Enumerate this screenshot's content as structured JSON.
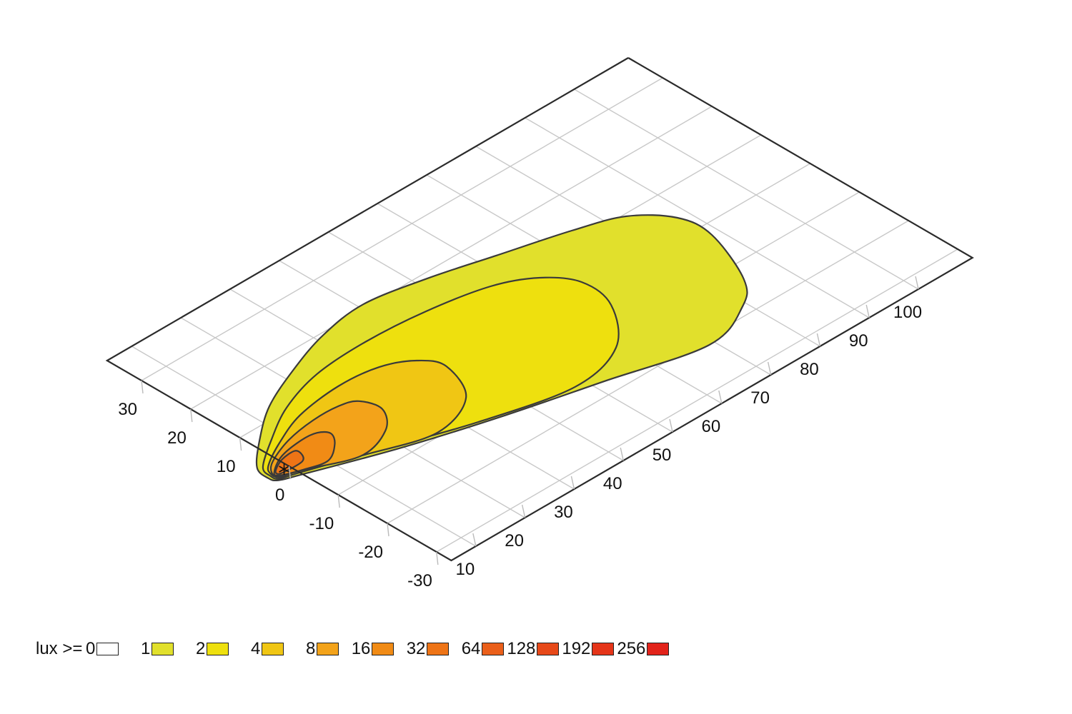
{
  "chart_data": {
    "type": "contour",
    "unit": "lux",
    "x_axis": {
      "ticks": [
        10,
        20,
        30,
        40,
        50,
        60,
        70,
        80,
        90,
        100
      ],
      "range": [
        5,
        111
      ]
    },
    "y_axis": {
      "ticks": [
        -30,
        -20,
        -10,
        0,
        10,
        20,
        30
      ],
      "range": [
        -33,
        37
      ]
    },
    "grid": true,
    "source_marker": {
      "x": 4,
      "y": 0
    },
    "contours": [
      {
        "level": 1,
        "color": "#e1e02c",
        "points": [
          [
            1.5,
            -1.4
          ],
          [
            0.8,
            0
          ],
          [
            1.5,
            3
          ],
          [
            6.5,
            7.5
          ],
          [
            13.5,
            12.5
          ],
          [
            22.5,
            16.5
          ],
          [
            31.5,
            19.5
          ],
          [
            41,
            20.8
          ],
          [
            52,
            18.8
          ],
          [
            63,
            15.8
          ],
          [
            75,
            12.5
          ],
          [
            83,
            9.5
          ],
          [
            88,
            4
          ],
          [
            88.5,
            -2.5
          ],
          [
            84,
            -13.5
          ],
          [
            79,
            -18.2
          ],
          [
            69,
            -21.5
          ],
          [
            52,
            -17.2
          ],
          [
            36,
            -13.1
          ],
          [
            20,
            -8.3
          ],
          [
            5,
            -2.8
          ]
        ]
      },
      {
        "level": 2,
        "color": "#eee00e",
        "points": [
          [
            1.8,
            -1.2
          ],
          [
            1.4,
            0.2
          ],
          [
            2.2,
            2.5
          ],
          [
            7.5,
            6.2
          ],
          [
            15,
            10.5
          ],
          [
            24,
            13.3
          ],
          [
            34.5,
            14
          ],
          [
            46,
            13.2
          ],
          [
            57,
            11
          ],
          [
            63.5,
            7.5
          ],
          [
            67,
            2.5
          ],
          [
            66,
            -4.5
          ],
          [
            59,
            -12.5
          ],
          [
            48,
            -15.2
          ],
          [
            32,
            -11.5
          ],
          [
            17,
            -6.3
          ],
          [
            5,
            -2.2
          ]
        ]
      },
      {
        "level": 4,
        "color": "#f0c614",
        "points": [
          [
            2.1,
            -1
          ],
          [
            1.8,
            0.5
          ],
          [
            3,
            2.2
          ],
          [
            8,
            5
          ],
          [
            15,
            7.8
          ],
          [
            24,
            9
          ],
          [
            31.5,
            8.2
          ],
          [
            36.5,
            5.5
          ],
          [
            38.5,
            1.5
          ],
          [
            35,
            -6
          ],
          [
            26,
            -9.2
          ],
          [
            15,
            -5.8
          ],
          [
            5,
            -1.8
          ]
        ]
      },
      {
        "level": 8,
        "color": "#f3a31a",
        "points": [
          [
            2.3,
            -0.9
          ],
          [
            2.1,
            0.6
          ],
          [
            4.2,
            2.5
          ],
          [
            9.5,
            4.6
          ],
          [
            15.5,
            5.6
          ],
          [
            20.5,
            5.5
          ],
          [
            23.5,
            4.3
          ],
          [
            24.5,
            0.5
          ],
          [
            21,
            -3.6
          ],
          [
            14,
            -5.5
          ],
          [
            5,
            -1.6
          ]
        ]
      },
      {
        "level": 16,
        "color": "#f18b15",
        "points": [
          [
            2.4,
            -0.6
          ],
          [
            2.5,
            0.5
          ],
          [
            6,
            2.5
          ],
          [
            10.8,
            3.3
          ],
          [
            13.7,
            3
          ],
          [
            15,
            1.5
          ],
          [
            13.5,
            -0.8
          ],
          [
            10,
            -3
          ],
          [
            6,
            -2.1
          ]
        ]
      },
      {
        "level": 32,
        "color": "#ee7416",
        "points": [
          [
            2.6,
            -0.3
          ],
          [
            2.9,
            0.6
          ],
          [
            5.5,
            1.9
          ],
          [
            8.3,
            2.1
          ],
          [
            8.3,
            0.6
          ],
          [
            7.2,
            -0.5
          ],
          [
            4.6,
            -0.6
          ]
        ]
      }
    ],
    "legend": {
      "label": "lux >=",
      "items": [
        {
          "value": "0",
          "color": "#ffffff"
        },
        {
          "value": "1",
          "color": "#e1e02c"
        },
        {
          "value": "2",
          "color": "#eee00e"
        },
        {
          "value": "4",
          "color": "#f0c614"
        },
        {
          "value": "8",
          "color": "#f3a31a"
        },
        {
          "value": "16",
          "color": "#f18b15"
        },
        {
          "value": "32",
          "color": "#ee7416"
        },
        {
          "value": "64",
          "color": "#ea5f1a"
        },
        {
          "value": "128",
          "color": "#e74919"
        },
        {
          "value": "192",
          "color": "#e53519"
        },
        {
          "value": "256",
          "color": "#e2231a"
        }
      ]
    }
  }
}
